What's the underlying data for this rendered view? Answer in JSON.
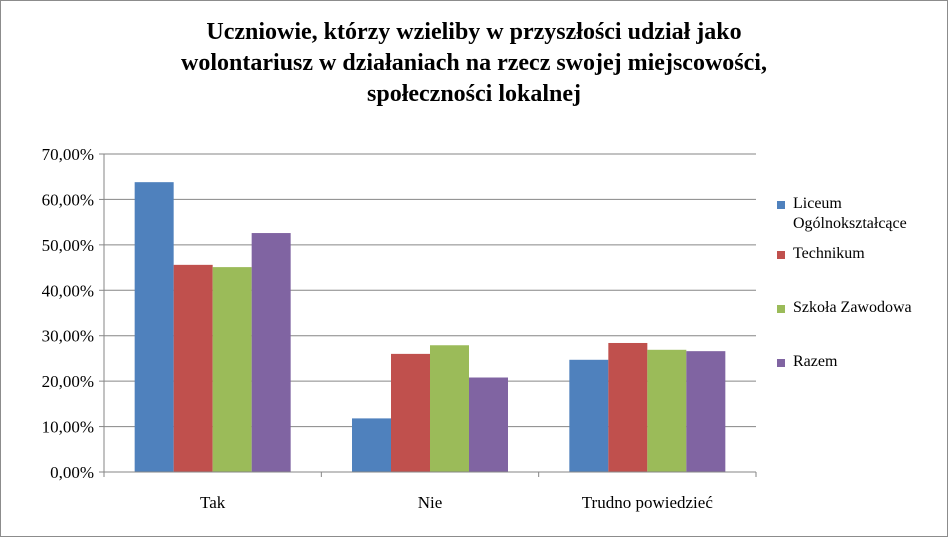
{
  "chart_data": {
    "type": "bar",
    "title": [
      "Uczniowie, którzy wzieliby  w przyszłości udział jako",
      "wolontariusz w działaniach na rzecz swojej miejscowości,",
      "społeczności lokalnej"
    ],
    "categories": [
      "Tak",
      "Nie",
      "Trudno powiedzieć"
    ],
    "series": [
      {
        "name": "Liceum Ogólnokształcące",
        "color": "#4F81BD",
        "values": [
          63.8,
          11.8,
          24.7
        ]
      },
      {
        "name": "Technikum",
        "color": "#C0504D",
        "values": [
          45.6,
          26.0,
          28.4
        ]
      },
      {
        "name": "Szkoła Zawodowa",
        "color": "#9BBB59",
        "values": [
          45.1,
          27.9,
          26.9
        ]
      },
      {
        "name": "Razem",
        "color": "#8064A2",
        "values": [
          52.6,
          20.8,
          26.6
        ]
      }
    ],
    "y_ticks": [
      "0,00%",
      "10,00%",
      "20,00%",
      "30,00%",
      "40,00%",
      "50,00%",
      "60,00%",
      "70,00%"
    ],
    "ylim": [
      0,
      70
    ],
    "grid": "horizontal",
    "legend_position": "right"
  }
}
